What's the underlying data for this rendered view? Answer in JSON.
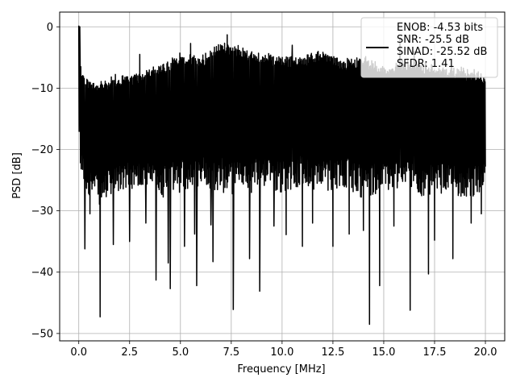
{
  "chart_data": {
    "type": "line",
    "title": "",
    "xlabel": "Frequency [MHz]",
    "ylabel": "PSD [dB]",
    "xlim": [
      -0.94,
      20.95
    ],
    "ylim": [
      -51.2,
      2.4
    ],
    "x_ticks": [
      0.0,
      2.5,
      5.0,
      7.5,
      10.0,
      12.5,
      15.0,
      17.5,
      20.0
    ],
    "x_tick_labels": [
      "0.0",
      "2.5",
      "5.0",
      "7.5",
      "10.0",
      "12.5",
      "15.0",
      "17.5",
      "20.0"
    ],
    "y_ticks": [
      0,
      -10,
      -20,
      -30,
      -40,
      -50
    ],
    "y_tick_labels": [
      "0",
      "−10",
      "−20",
      "−30",
      "−40",
      "−50"
    ],
    "grid": true,
    "legend_position": "top-right",
    "series": [
      {
        "color": "#000000",
        "x_range": [
          0.0,
          20.0
        ],
        "points": 1200,
        "envelope": {
          "x": [
            0.0,
            0.1,
            0.4,
            1.0,
            2.0,
            3.0,
            4.0,
            5.0,
            6.0,
            7.0,
            8.0,
            9.0,
            10.0,
            11.0,
            12.0,
            13.0,
            14.0,
            15.0,
            16.0,
            17.0,
            18.0,
            19.0,
            20.0
          ],
          "upper": [
            0.0,
            -7.0,
            -9.0,
            -9.5,
            -8.5,
            -8.0,
            -7.0,
            -5.0,
            -5.5,
            -3.0,
            -4.0,
            -5.0,
            -5.5,
            -5.5,
            -4.5,
            -6.0,
            -5.5,
            -7.0,
            -6.0,
            -6.5,
            -7.0,
            -7.5,
            -8.0
          ],
          "lower": [
            -22.0,
            -24.0,
            -27.0,
            -29.0,
            -27.0,
            -26.0,
            -28.0,
            -27.0,
            -26.0,
            -27.0,
            -28.0,
            -26.0,
            -27.0,
            -26.0,
            -27.0,
            -26.0,
            -28.0,
            -27.0,
            -26.0,
            -28.0,
            -27.0,
            -28.0,
            -27.0
          ]
        },
        "dips": [
          {
            "x": 0.3,
            "y": -36.2
          },
          {
            "x": 0.55,
            "y": -30.5
          },
          {
            "x": 1.05,
            "y": -47.3
          },
          {
            "x": 1.7,
            "y": -35.5
          },
          {
            "x": 2.5,
            "y": -35.0
          },
          {
            "x": 3.3,
            "y": -32.0
          },
          {
            "x": 3.8,
            "y": -41.3
          },
          {
            "x": 4.4,
            "y": -38.5
          },
          {
            "x": 4.5,
            "y": -42.7
          },
          {
            "x": 5.2,
            "y": -35.8
          },
          {
            "x": 5.7,
            "y": -33.8
          },
          {
            "x": 5.8,
            "y": -42.2
          },
          {
            "x": 6.5,
            "y": -32.3
          },
          {
            "x": 6.6,
            "y": -38.3
          },
          {
            "x": 7.3,
            "y": -35.0
          },
          {
            "x": 7.6,
            "y": -46.1
          },
          {
            "x": 8.4,
            "y": -37.8
          },
          {
            "x": 8.9,
            "y": -43.1
          },
          {
            "x": 9.6,
            "y": -32.5
          },
          {
            "x": 10.2,
            "y": -33.9
          },
          {
            "x": 11.0,
            "y": -35.8
          },
          {
            "x": 11.5,
            "y": -32.0
          },
          {
            "x": 12.5,
            "y": -35.8
          },
          {
            "x": 13.3,
            "y": -33.8
          },
          {
            "x": 14.0,
            "y": -33.2
          },
          {
            "x": 14.3,
            "y": -48.5
          },
          {
            "x": 14.8,
            "y": -42.2
          },
          {
            "x": 15.5,
            "y": -32.5
          },
          {
            "x": 16.3,
            "y": -46.2
          },
          {
            "x": 17.2,
            "y": -40.3
          },
          {
            "x": 17.5,
            "y": -34.8
          },
          {
            "x": 18.4,
            "y": -37.8
          },
          {
            "x": 19.3,
            "y": -32.0
          },
          {
            "x": 19.8,
            "y": -30.5
          }
        ],
        "peaks": [
          {
            "x": 0.05,
            "y": 0.0
          },
          {
            "x": 0.1,
            "y": -6.5
          },
          {
            "x": 3.0,
            "y": -4.5
          },
          {
            "x": 5.5,
            "y": -2.7
          },
          {
            "x": 7.3,
            "y": -1.3
          },
          {
            "x": 10.5,
            "y": -3.0
          },
          {
            "x": 15.8,
            "y": -1.8
          },
          {
            "x": 16.5,
            "y": -4.0
          }
        ]
      }
    ],
    "legend": {
      "lines": [
        "ENOB: -4.53 bits",
        "SNR: -25.5 dB",
        "SINAD: -25.52 dB",
        "SFDR: 1.41"
      ]
    }
  }
}
